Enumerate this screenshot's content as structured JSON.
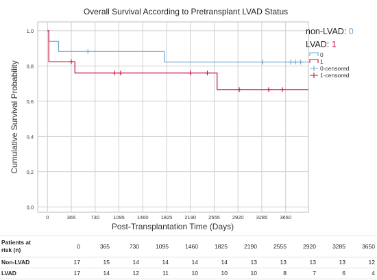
{
  "chart_data": {
    "type": "line",
    "title": "Overall Survival According to Pretransplant LVAD Status",
    "xlabel": "Post-Transplantation Time (Days)",
    "ylabel": "Cumulative Survival Probability",
    "xlim": [
      -150,
      4000
    ],
    "ylim": [
      -0.03,
      1.05
    ],
    "x_ticks": [
      0,
      365,
      730,
      1095,
      1460,
      1825,
      2190,
      2555,
      2920,
      3285,
      3650
    ],
    "y_ticks": [
      0.0,
      0.2,
      0.4,
      0.6,
      0.8,
      1.0
    ],
    "y_tick_labels": [
      "0,0",
      "0,2",
      "0,4",
      "0,6",
      "0,8",
      "1,0"
    ],
    "grid": true,
    "legend_position": "right",
    "series": [
      {
        "name": "0",
        "color": "#6aa6d0",
        "steps": [
          [
            0,
            1.0
          ],
          [
            20,
            0.94
          ],
          [
            170,
            0.882
          ],
          [
            1790,
            0.882
          ],
          [
            1790,
            0.822
          ],
          [
            4000,
            0.822
          ]
        ],
        "censored": [
          [
            620,
            0.882
          ],
          [
            3300,
            0.822
          ],
          [
            3730,
            0.822
          ],
          [
            3800,
            0.822
          ],
          [
            3880,
            0.822
          ]
        ]
      },
      {
        "name": "1",
        "color": "#c8103e",
        "steps": [
          [
            0,
            1.0
          ],
          [
            20,
            0.824
          ],
          [
            420,
            0.824
          ],
          [
            420,
            0.76
          ],
          [
            2600,
            0.76
          ],
          [
            2600,
            0.666
          ],
          [
            4000,
            0.666
          ]
        ],
        "censored": [
          [
            365,
            0.824
          ],
          [
            1030,
            0.76
          ],
          [
            1120,
            0.76
          ],
          [
            2190,
            0.76
          ],
          [
            2450,
            0.76
          ],
          [
            2940,
            0.666
          ],
          [
            3390,
            0.666
          ],
          [
            3600,
            0.666
          ]
        ]
      }
    ],
    "legend_entries": [
      {
        "label": "0",
        "symbol": "line",
        "color": "#6aa6d0"
      },
      {
        "label": "1",
        "symbol": "line",
        "color": "#c8103e"
      },
      {
        "label": "0-censored",
        "symbol": "plus",
        "color": "#6aa6d0"
      },
      {
        "label": "1-censored",
        "symbol": "plus",
        "color": "#c8103e"
      }
    ],
    "group_legend": [
      {
        "label": "non-LVAD:",
        "value": "0",
        "value_color": "#6aa6d0"
      },
      {
        "label": "LVAD:",
        "value": "1",
        "value_color": "#c8103e"
      }
    ]
  },
  "risk_table": {
    "header_label_line1": "Patients at",
    "header_label_line2": "risk (n)",
    "times": [
      "0",
      "365",
      "730",
      "1095",
      "1460",
      "1825",
      "2190",
      "2555",
      "2920",
      "3285",
      "3650"
    ],
    "rows": [
      {
        "label": "Non-LVAD",
        "values": [
          "17",
          "15",
          "14",
          "14",
          "14",
          "14",
          "13",
          "13",
          "13",
          "13",
          "12"
        ]
      },
      {
        "label": "LVAD",
        "values": [
          "17",
          "14",
          "12",
          "11",
          "10",
          "10",
          "10",
          "8",
          "7",
          "6",
          "4"
        ]
      }
    ]
  }
}
